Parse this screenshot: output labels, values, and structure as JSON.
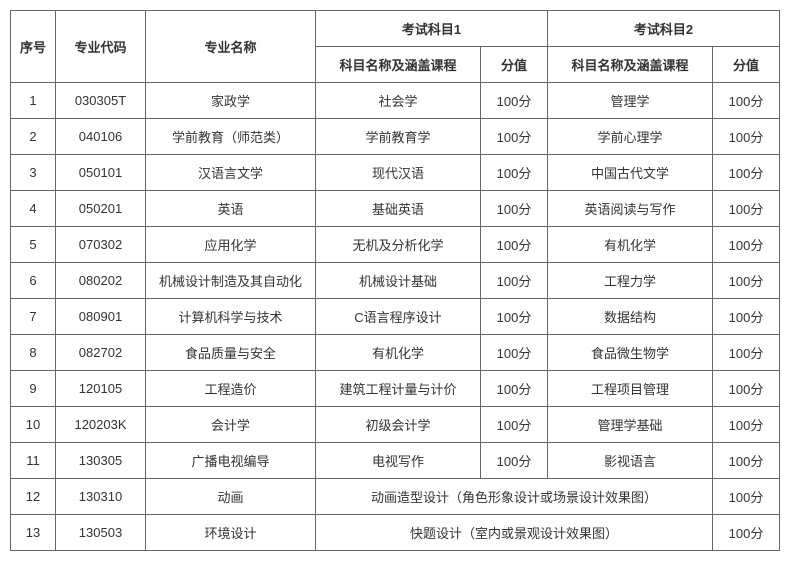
{
  "headers": {
    "seq": "序号",
    "major_code": "专业代码",
    "major_name": "专业名称",
    "exam1_group": "考试科目1",
    "exam2_group": "考试科目2",
    "subject_label": "科目名称及涵盖课程",
    "score_label": "分值"
  },
  "rows": [
    {
      "seq": "1",
      "code": "030305T",
      "name": "家政学",
      "subj1": "社会学",
      "score1": "100分",
      "subj2": "管理学",
      "score2": "100分"
    },
    {
      "seq": "2",
      "code": "040106",
      "name": "学前教育（师范类）",
      "subj1": "学前教育学",
      "score1": "100分",
      "subj2": "学前心理学",
      "score2": "100分"
    },
    {
      "seq": "3",
      "code": "050101",
      "name": "汉语言文学",
      "subj1": "现代汉语",
      "score1": "100分",
      "subj2": "中国古代文学",
      "score2": "100分"
    },
    {
      "seq": "4",
      "code": "050201",
      "name": "英语",
      "subj1": "基础英语",
      "score1": "100分",
      "subj2": "英语阅读与写作",
      "score2": "100分"
    },
    {
      "seq": "5",
      "code": "070302",
      "name": "应用化学",
      "subj1": "无机及分析化学",
      "score1": "100分",
      "subj2": "有机化学",
      "score2": "100分"
    },
    {
      "seq": "6",
      "code": "080202",
      "name": "机械设计制造及其自动化",
      "subj1": "机械设计基础",
      "score1": "100分",
      "subj2": "工程力学",
      "score2": "100分"
    },
    {
      "seq": "7",
      "code": "080901",
      "name": "计算机科学与技术",
      "subj1": "C语言程序设计",
      "score1": "100分",
      "subj2": "数据结构",
      "score2": "100分"
    },
    {
      "seq": "8",
      "code": "082702",
      "name": "食品质量与安全",
      "subj1": "有机化学",
      "score1": "100分",
      "subj2": "食品微生物学",
      "score2": "100分"
    },
    {
      "seq": "9",
      "code": "120105",
      "name": "工程造价",
      "subj1": "建筑工程计量与计价",
      "score1": "100分",
      "subj2": "工程项目管理",
      "score2": "100分"
    },
    {
      "seq": "10",
      "code": "120203K",
      "name": "会计学",
      "subj1": "初级会计学",
      "score1": "100分",
      "subj2": "管理学基础",
      "score2": "100分"
    },
    {
      "seq": "11",
      "code": "130305",
      "name": "广播电视编导",
      "subj1": "电视写作",
      "score1": "100分",
      "subj2": "影视语言",
      "score2": "100分"
    }
  ],
  "merged_rows": [
    {
      "seq": "12",
      "code": "130310",
      "name": "动画",
      "merged_subject": "动画造型设计（角色形象设计或场景设计效果图）",
      "score2": "100分"
    },
    {
      "seq": "13",
      "code": "130503",
      "name": "环境设计",
      "merged_subject": "快题设计（室内或景观设计效果图）",
      "score2": "100分"
    }
  ],
  "style": {
    "border_color": "#666666",
    "text_color": "#333333",
    "background_color": "#ffffff",
    "font_size": 13
  }
}
